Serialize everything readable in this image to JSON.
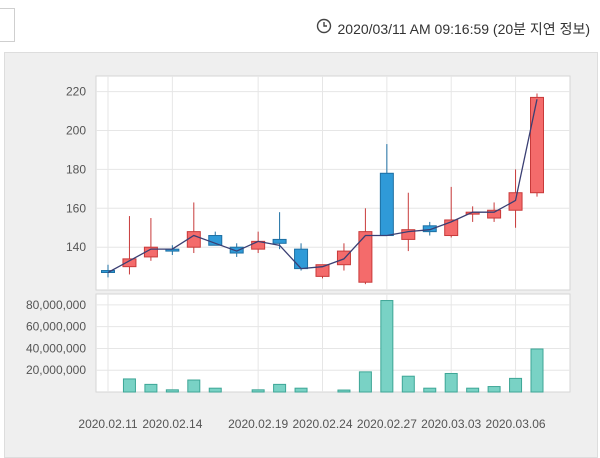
{
  "header": {
    "timestamp": "2020/03/11 AM 09:16:59 (20분 지연 정보)",
    "clock_icon": "clock-icon"
  },
  "colors": {
    "up": "#f46b6b",
    "up_stroke": "#c83a3a",
    "down": "#2f9ad8",
    "down_stroke": "#1d6fa3",
    "volume": "#79d2c5",
    "volume_stroke": "#3ea696",
    "ma_line": "#3a3f73"
  },
  "chart_data": [
    {
      "type": "candlestick",
      "ylim": [
        118,
        228
      ],
      "yticks": [
        "140",
        "160",
        "180",
        "200",
        "220"
      ],
      "candles": [
        {
          "o": 128,
          "h": 131,
          "l": 124.5,
          "c": 127
        },
        {
          "o": 130,
          "h": 156,
          "l": 126,
          "c": 134
        },
        {
          "o": 135,
          "h": 155,
          "l": 133,
          "c": 140
        },
        {
          "o": 139,
          "h": 141,
          "l": 136,
          "c": 138
        },
        {
          "o": 140,
          "h": 163,
          "l": 137,
          "c": 148
        },
        {
          "o": 146,
          "h": 148,
          "l": 142,
          "c": 141
        },
        {
          "o": 140,
          "h": 142,
          "l": 135,
          "c": 137
        },
        {
          "o": 139,
          "h": 148,
          "l": 137,
          "c": 143
        },
        {
          "o": 144,
          "h": 158,
          "l": 139,
          "c": 142
        },
        {
          "o": 139,
          "h": 142,
          "l": 128,
          "c": 129
        },
        {
          "o": 125,
          "h": 131,
          "l": 124,
          "c": 131
        },
        {
          "o": 131,
          "h": 142,
          "l": 128,
          "c": 138
        },
        {
          "o": 122,
          "h": 160,
          "l": 121,
          "c": 148
        },
        {
          "o": 178,
          "h": 193,
          "l": 146,
          "c": 146
        },
        {
          "o": 144,
          "h": 168,
          "l": 138,
          "c": 149
        },
        {
          "o": 151,
          "h": 153,
          "l": 146,
          "c": 148
        },
        {
          "o": 146,
          "h": 171,
          "l": 145,
          "c": 154
        },
        {
          "o": 157,
          "h": 161,
          "l": 153,
          "c": 158
        },
        {
          "o": 155,
          "h": 163,
          "l": 153,
          "c": 159
        },
        {
          "o": 159,
          "h": 180,
          "l": 150,
          "c": 168
        },
        {
          "o": 168,
          "h": 219,
          "l": 166,
          "c": 217
        }
      ],
      "ma": [
        127,
        133,
        139,
        139,
        146,
        142,
        138,
        143,
        141,
        129,
        130,
        134,
        146,
        146,
        148,
        149,
        153,
        158,
        158,
        164,
        216
      ]
    },
    {
      "type": "bar",
      "ylim": [
        0,
        90000000
      ],
      "yticks": [
        "20,000,000",
        "40,000,000",
        "60,000,000",
        "80,000,000"
      ],
      "values": [
        0,
        12000000,
        7000000,
        2000000,
        11000000,
        3500000,
        0,
        2000000,
        7000000,
        3500000,
        0,
        1800000,
        18500000,
        84000000,
        14500000,
        3500000,
        17000000,
        3500000,
        5000000,
        12500000,
        39500000
      ]
    }
  ],
  "x_axis": {
    "labels": [
      "2020.02.11",
      "2020.02.14",
      "2020.02.19",
      "2020.02.24",
      "2020.02.27",
      "2020.03.03",
      "2020.03.06"
    ]
  }
}
